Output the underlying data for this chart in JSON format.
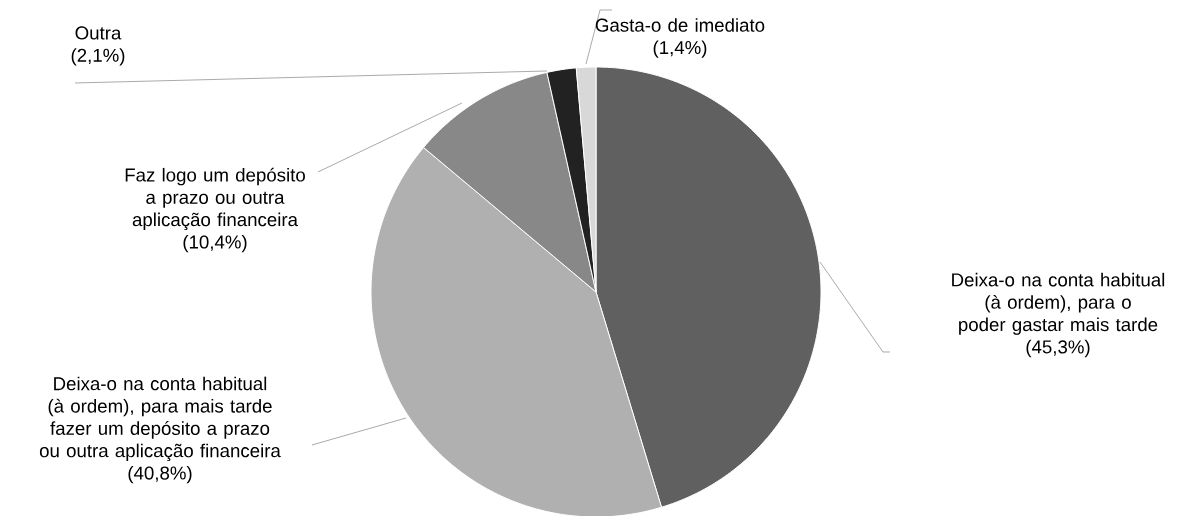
{
  "chart_data": {
    "type": "pie",
    "categories": [
      "Deixa-o na conta habitual (à ordem), para o poder gastar mais tarde",
      "Deixa-o na conta habitual (à ordem), para mais tarde fazer um depósito a prazo ou outra aplicação financeira",
      "Faz logo um depósito a prazo ou outra aplicação financeira",
      "Outra",
      "Gasta-o de imediato"
    ],
    "values": [
      45.3,
      40.8,
      10.4,
      2.1,
      1.4
    ],
    "value_labels": [
      "(45,3%)",
      "(40,8%)",
      "(10,4%)",
      "(2,1%)",
      "(1,4%)"
    ],
    "colors": [
      "#606060",
      "#b0b0b0",
      "#888888",
      "#222222",
      "#d8d8d8"
    ]
  }
}
